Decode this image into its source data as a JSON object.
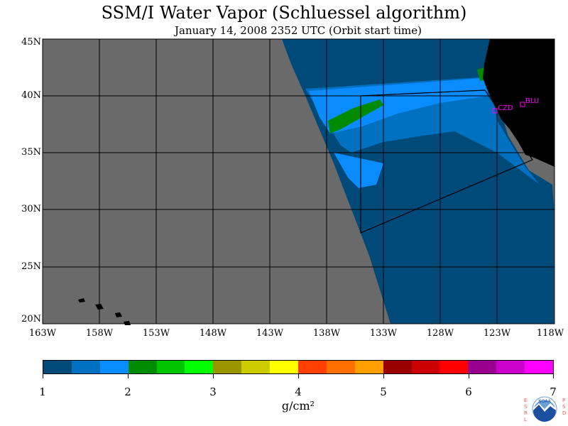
{
  "title": "SSM/I Water Vapor (Schluessel algorithm)",
  "subtitle": "January 14, 2008  2352 UTC  (Orbit start time)",
  "map": {
    "lat_labels": [
      "45N",
      "40N",
      "35N",
      "30N",
      "25N",
      "20N"
    ],
    "lon_labels": [
      "163W",
      "158W",
      "153W",
      "148W",
      "143W",
      "138W",
      "133W",
      "128W",
      "123W",
      "118W"
    ],
    "lat_range": [
      20,
      45
    ],
    "lon_range": [
      -163,
      -118
    ],
    "colors": {
      "no_data": "#6a6a6a",
      "land": "#000000",
      "gridline": "#000000",
      "marker": "#ff00ff"
    },
    "stations": [
      {
        "name": "CZD"
      },
      {
        "name": "BLU"
      }
    ]
  },
  "colorbar": {
    "colors": [
      "#004a7a",
      "#0070c0",
      "#0a8cff",
      "#008a00",
      "#00c400",
      "#00ff00",
      "#9a9600",
      "#cccc00",
      "#ffff00",
      "#ff4000",
      "#ff7000",
      "#ffa000",
      "#9a0000",
      "#cc0000",
      "#ff0000",
      "#9a0090",
      "#cc00cc",
      "#ff00ff"
    ],
    "labels": [
      "1",
      "2",
      "3",
      "4",
      "5",
      "6",
      "7"
    ],
    "units": "g/cm²"
  },
  "logo": {
    "left_letters": "ESRL",
    "right_letters": "PSD",
    "text": "NOAA"
  }
}
